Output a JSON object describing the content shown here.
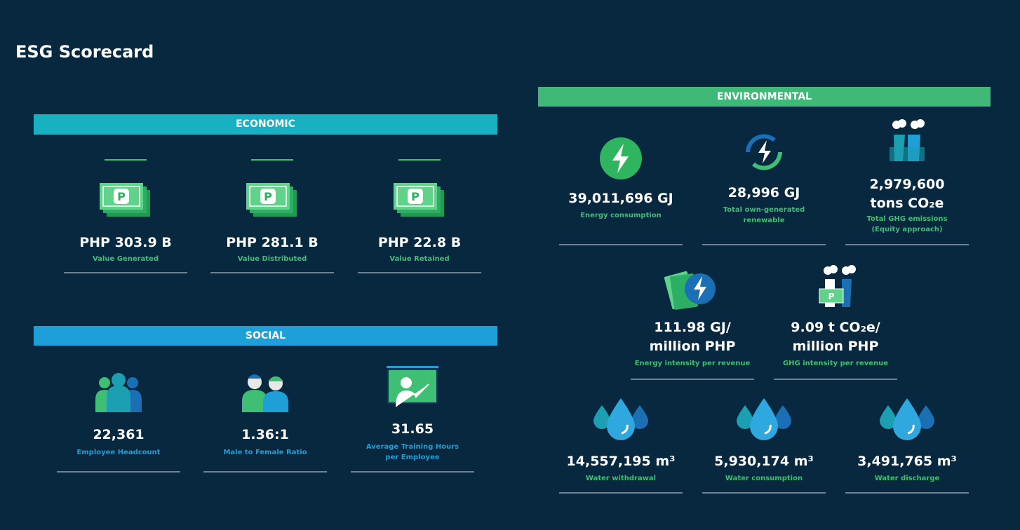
{
  "title": "ESG Scorecard",
  "economic": {
    "heading": "ECONOMIC",
    "items": [
      {
        "value": "PHP 303.9 B",
        "label": "Value Generated"
      },
      {
        "value": "PHP 281.1 B",
        "label": "Value Distributed"
      },
      {
        "value": "PHP 22.8 B",
        "label": "Value Retained"
      }
    ]
  },
  "social": {
    "heading": "SOCIAL",
    "items": [
      {
        "value": "22,361",
        "label": "Employee Headcount"
      },
      {
        "value": "1.36:1",
        "label": "Male to Female Ratio"
      },
      {
        "value": "31.65",
        "label": "Average Training Hours\nper Employee"
      }
    ]
  },
  "environmental": {
    "heading": "ENVIRONMENTAL",
    "items": [
      {
        "value": "39,011,696 GJ",
        "label": "Energy consumption"
      },
      {
        "value": "28,996 GJ",
        "label": "Total own-generated\nrenewable"
      },
      {
        "value": "2,979,600\ntons CO₂e",
        "label": "Total GHG emissions\n(Equity approach)"
      },
      {
        "value": "111.98 GJ/\nmillion PHP",
        "label": "Energy intensity per revenue"
      },
      {
        "value": "9.09 t CO₂e/\nmillion PHP",
        "label": "GHG intensity per revenue"
      },
      {
        "value": "14,557,195 m³",
        "label": "Water withdrawal"
      },
      {
        "value": "5,930,174 m³",
        "label": "Water consumption"
      },
      {
        "value": "3,491,765 m³",
        "label": "Water discharge"
      }
    ]
  }
}
